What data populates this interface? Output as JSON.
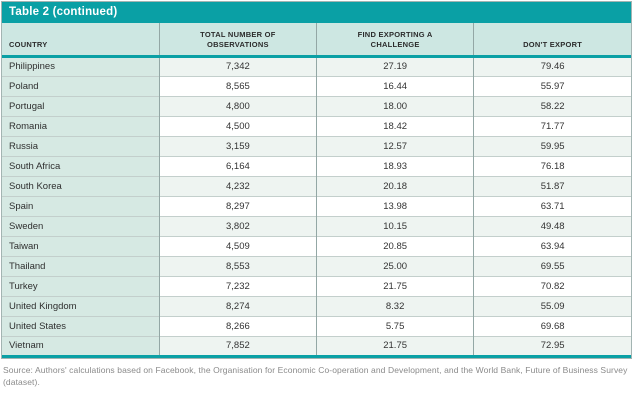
{
  "colors": {
    "band_teal": "#0aa0a5",
    "header_row_bg": "#cde7e2",
    "country_col_bg": "#d6e9e3",
    "odd_row_bg": "#eef4f1",
    "even_row_bg": "#ffffff",
    "vertical_border": "#93a7a5",
    "horizontal_border": "#c3cfcc",
    "title_text": "#ffffff",
    "source_text": "#8a8a8a"
  },
  "chart_data": {
    "type": "table",
    "title": "Table 2 (continued)",
    "columns": [
      "COUNTRY",
      "TOTAL NUMBER OF OBSERVATIONS",
      "FIND EXPORTING A CHALLENGE",
      "DON'T EXPORT"
    ],
    "rows": [
      [
        "Philippines",
        "7,342",
        "27.19",
        "79.46"
      ],
      [
        "Poland",
        "8,565",
        "16.44",
        "55.97"
      ],
      [
        "Portugal",
        "4,800",
        "18.00",
        "58.22"
      ],
      [
        "Romania",
        "4,500",
        "18.42",
        "71.77"
      ],
      [
        "Russia",
        "3,159",
        "12.57",
        "59.95"
      ],
      [
        "South Africa",
        "6,164",
        "18.93",
        "76.18"
      ],
      [
        "South Korea",
        "4,232",
        "20.18",
        "51.87"
      ],
      [
        "Spain",
        "8,297",
        "13.98",
        "63.71"
      ],
      [
        "Sweden",
        "3,802",
        "10.15",
        "49.48"
      ],
      [
        "Taiwan",
        "4,509",
        "20.85",
        "63.94"
      ],
      [
        "Thailand",
        "8,553",
        "25.00",
        "69.55"
      ],
      [
        "Turkey",
        "7,232",
        "21.75",
        "70.82"
      ],
      [
        "United Kingdom",
        "8,274",
        "8.32",
        "55.09"
      ],
      [
        "United States",
        "8,266",
        "5.75",
        "69.68"
      ],
      [
        "Vietnam",
        "7,852",
        "21.75",
        "72.95"
      ]
    ],
    "source": "Source: Authors' calculations based on Facebook, the Organisation for Economic Co-operation and Development, and the World Bank, Future of Business Survey (dataset)."
  }
}
